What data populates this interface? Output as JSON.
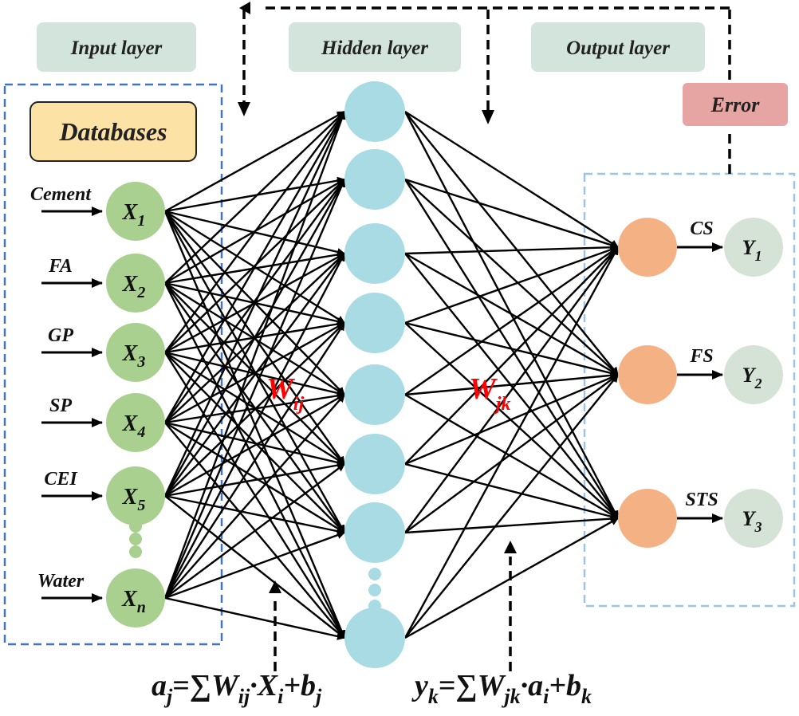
{
  "layers": {
    "input_title": "Input layer",
    "hidden_title": "Hidden layer",
    "output_title": "Output layer"
  },
  "databases_label": "Databases",
  "error_label": "Error",
  "inputs": [
    {
      "name": "Cement",
      "node": "X",
      "sub": "1"
    },
    {
      "name": "FA",
      "node": "X",
      "sub": "2"
    },
    {
      "name": "GP",
      "node": "X",
      "sub": "3"
    },
    {
      "name": "SP",
      "node": "X",
      "sub": "4"
    },
    {
      "name": "CEI",
      "node": "X",
      "sub": "5"
    },
    {
      "name": "Water",
      "node": "X",
      "sub": "n"
    }
  ],
  "outputs": [
    {
      "name": "CS",
      "node": "Y",
      "sub": "1"
    },
    {
      "name": "FS",
      "node": "Y",
      "sub": "2"
    },
    {
      "name": "STS",
      "node": "Y",
      "sub": "3"
    }
  ],
  "weights": {
    "input_hidden": {
      "main": "W",
      "sub": "ij"
    },
    "hidden_output": {
      "main": "W",
      "sub": "jk"
    }
  },
  "formulas": {
    "hidden": {
      "lhs": "a",
      "lhs_sub": "j",
      "eq": "=∑",
      "w": "W",
      "w_sub": "ij",
      "dot": "·",
      "x": "X",
      "x_sub": "i",
      "plus": "+",
      "b": "b",
      "b_sub": "j"
    },
    "output": {
      "lhs": "y",
      "lhs_sub": "k",
      "eq": "=∑",
      "w": "W",
      "w_sub": "jk",
      "dot": "·",
      "x": "a",
      "x_sub": "i",
      "plus": "+",
      "b": "b",
      "b_sub": "k"
    }
  },
  "colors": {
    "input_node": "#a9d08e",
    "hidden_node": "#a8dbe4",
    "output_node": "#f4b183",
    "result_node": "#d4e3d6",
    "layer_badge": "#d3e4dc",
    "databases_fill": "#fde2a6",
    "error_fill": "#e6a4a2",
    "weight_text": "#ff0000",
    "input_box_border": "#4472c4",
    "output_box_border": "#9dc3e6"
  }
}
